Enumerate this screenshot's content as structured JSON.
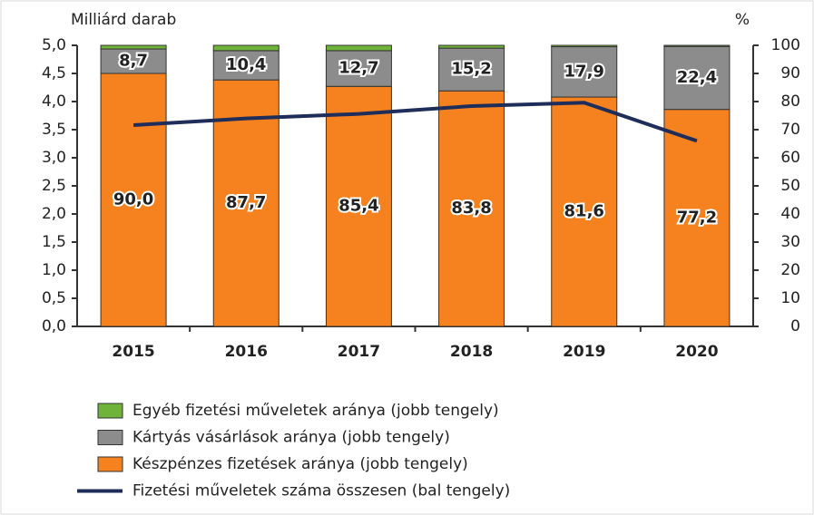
{
  "chart_data": {
    "type": "bar",
    "stacked": true,
    "ylabel": "Milliárd darab",
    "y2label": "%",
    "categories": [
      "2015",
      "2016",
      "2017",
      "2018",
      "2019",
      "2020"
    ],
    "series": [
      {
        "name": "Készpénzes fizetések aránya (jobb tengely)",
        "color": "#f5821f",
        "axis": "y2",
        "values": [
          90.0,
          87.7,
          85.4,
          83.8,
          81.6,
          77.2
        ],
        "value_labels": [
          "90,0",
          "87,7",
          "85,4",
          "83,8",
          "81,6",
          "77,2"
        ]
      },
      {
        "name": "Kártyás vásárlások aránya (jobb tengely)",
        "color": "#8c8c8c",
        "axis": "y2",
        "values": [
          8.7,
          10.4,
          12.7,
          15.2,
          17.9,
          22.4
        ],
        "value_labels": [
          "8,7",
          "10,4",
          "12,7",
          "15,2",
          "17,9",
          "22,4"
        ]
      },
      {
        "name": "Egyéb fizetési műveletek aránya (jobb tengely)",
        "color": "#70b33a",
        "axis": "y2",
        "values": [
          1.3,
          1.9,
          1.9,
          1.0,
          0.5,
          0.4
        ]
      },
      {
        "name": "Fizetési műveletek száma összesen (bal tengely)",
        "color": "#1f2d5a",
        "axis": "y",
        "type": "line",
        "values": [
          3.58,
          3.7,
          3.78,
          3.92,
          3.98,
          3.3
        ]
      }
    ],
    "ylim": [
      0,
      5
    ],
    "yticks": [
      {
        "value": 0,
        "label": "0,0"
      },
      {
        "value": 0.5,
        "label": "0,5"
      },
      {
        "value": 1,
        "label": "1,0"
      },
      {
        "value": 1.5,
        "label": "1,5"
      },
      {
        "value": 2,
        "label": "2,0"
      },
      {
        "value": 2.5,
        "label": "2,5"
      },
      {
        "value": 3,
        "label": "3,0"
      },
      {
        "value": 3.5,
        "label": "3,5"
      },
      {
        "value": 4,
        "label": "4,0"
      },
      {
        "value": 4.5,
        "label": "4,5"
      },
      {
        "value": 5,
        "label": "5,0"
      }
    ],
    "y2lim": [
      0,
      100
    ],
    "y2ticks": [
      0,
      10,
      20,
      30,
      40,
      50,
      60,
      70,
      80,
      90,
      100
    ]
  }
}
